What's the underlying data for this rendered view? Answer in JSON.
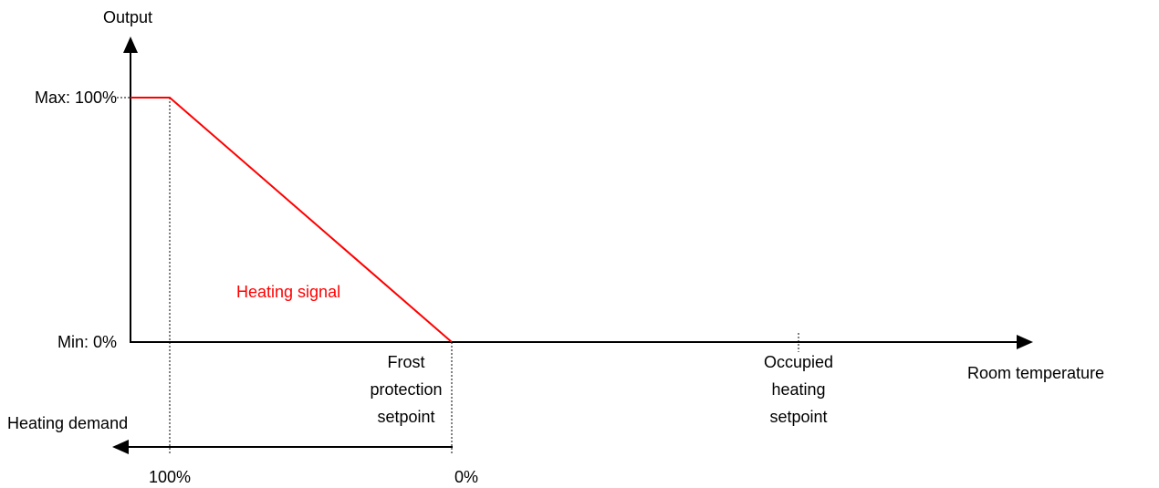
{
  "diagram": {
    "y_axis_label": "Output",
    "max_label": "Max: 100%",
    "min_label": "Min: 0%",
    "signal_label": "Heating signal",
    "frost_setpoint_label": [
      "Frost",
      "protection",
      "setpoint"
    ],
    "occupied_setpoint_label": [
      "Occupied",
      "heating",
      "setpoint"
    ],
    "x_axis_label": "Room temperature",
    "demand_axis_label": "Heating demand",
    "demand_full_label": "100%",
    "demand_zero_label": "0%"
  }
}
